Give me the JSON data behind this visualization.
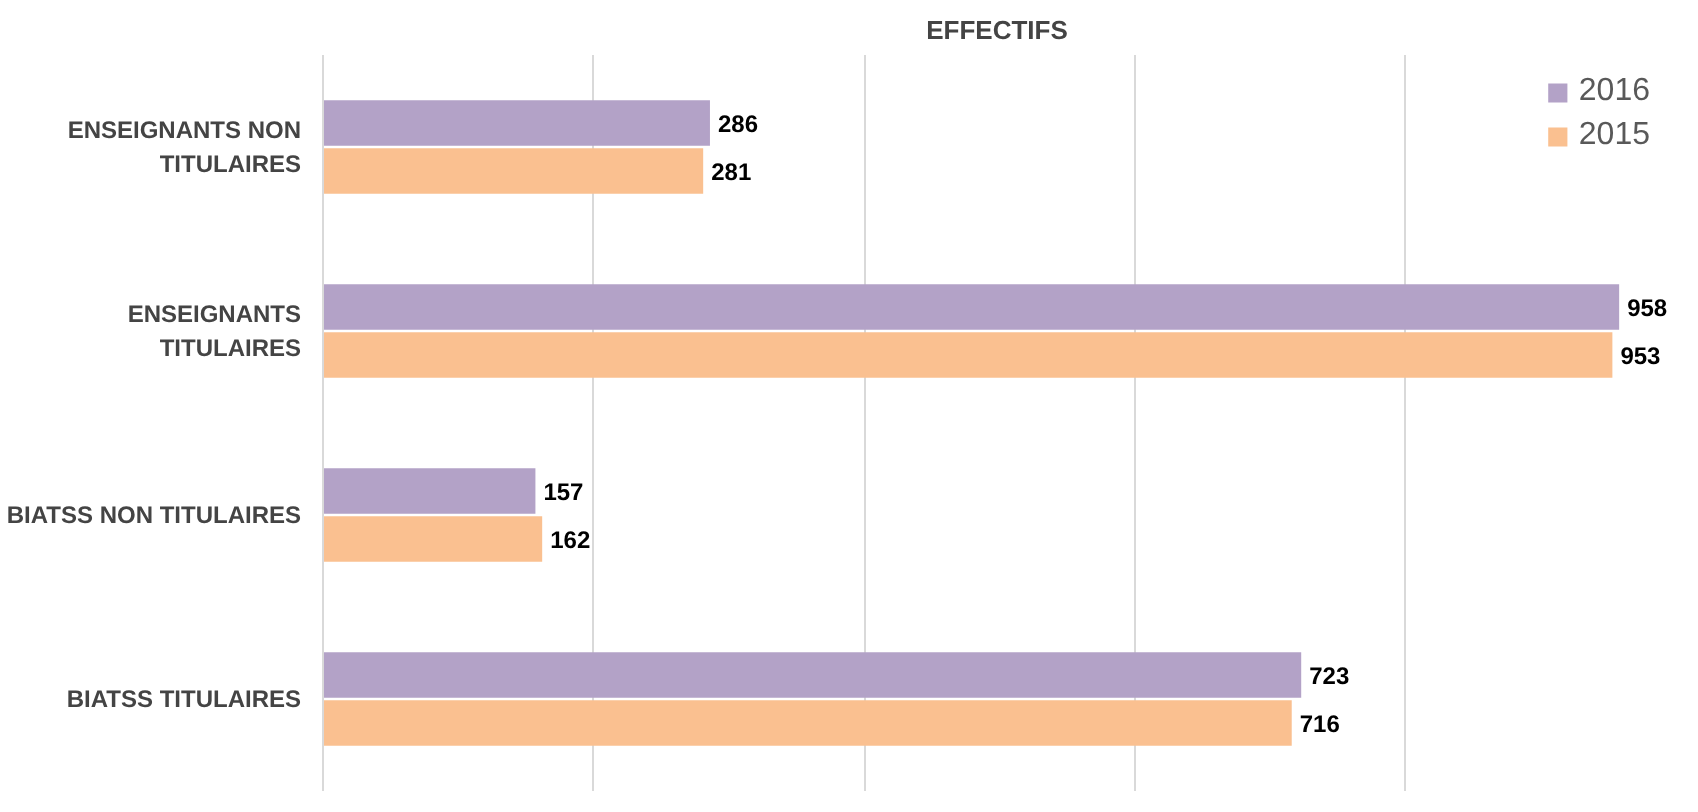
{
  "chart_data": {
    "type": "bar",
    "orientation": "horizontal",
    "title": "EFFECTIFS",
    "categories": [
      "ENSEIGNANTS NON\nTITULAIRES",
      "ENSEIGNANTS\nTITULAIRES",
      "BIATSS NON TITULAIRES",
      "BIATSS TITULAIRES"
    ],
    "series": [
      {
        "name": "2016",
        "color": "#b3a2c7",
        "values": [
          286,
          958,
          157,
          723
        ]
      },
      {
        "name": "2015",
        "color": "#fac090",
        "values": [
          281,
          953,
          162,
          716
        ]
      }
    ],
    "tick_labels": "y",
    "grid": "x",
    "legend": "top right",
    "data_labels": true
  }
}
